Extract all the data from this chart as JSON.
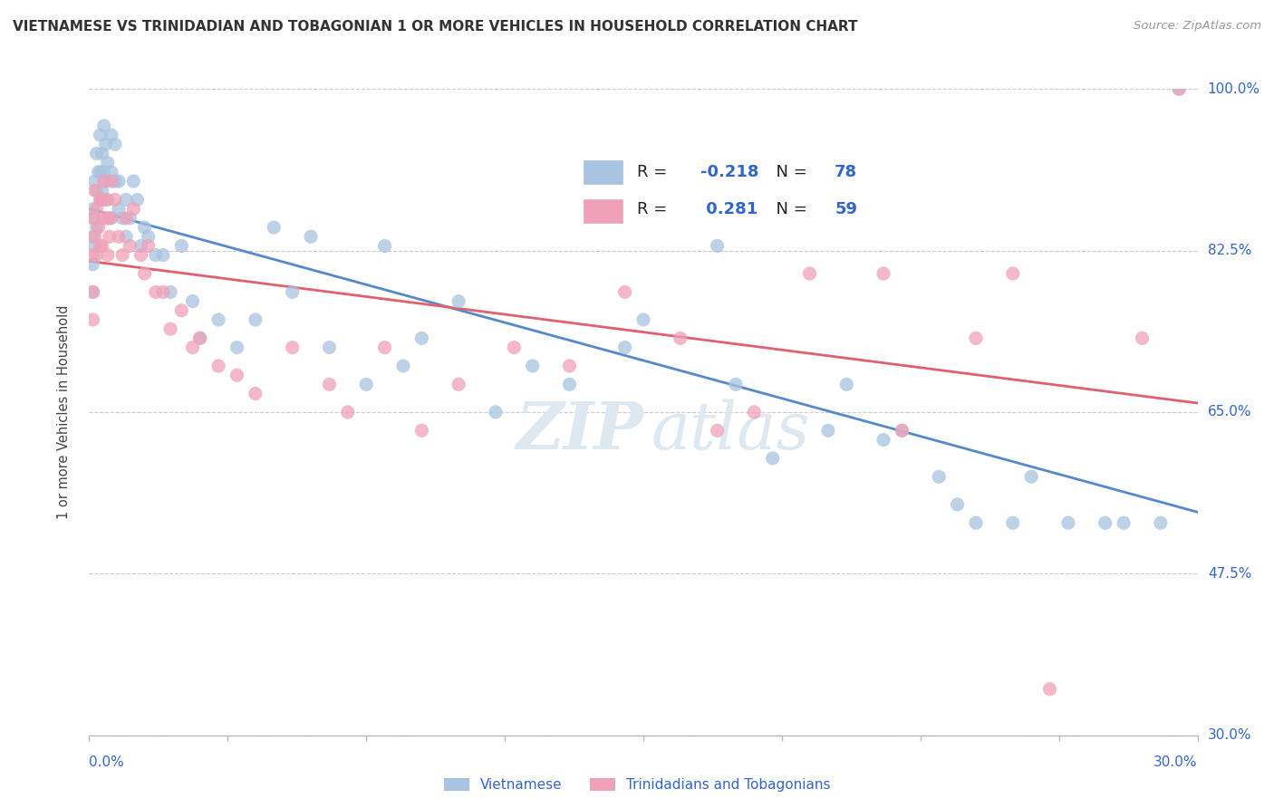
{
  "title": "VIETNAMESE VS TRINIDADIAN AND TOBAGONIAN 1 OR MORE VEHICLES IN HOUSEHOLD CORRELATION CHART",
  "source": "Source: ZipAtlas.com",
  "ylabel_label": "1 or more Vehicles in Household",
  "yticks": [
    30.0,
    47.5,
    65.0,
    82.5,
    100.0
  ],
  "xlim": [
    0.0,
    30.0
  ],
  "ylim": [
    30.0,
    100.0
  ],
  "R_blue": -0.218,
  "N_blue": 78,
  "R_pink": 0.281,
  "N_pink": 59,
  "blue_color": "#a8c4e0",
  "pink_color": "#f0a0b8",
  "blue_line_color": "#5588cc",
  "pink_line_color": "#e06070",
  "legend_R_color": "#3366cc",
  "title_color": "#333333",
  "source_color": "#999999",
  "axis_color": "#3366cc",
  "watermark_color": "#dde8f0",
  "blue_scatter_x": [
    0.1,
    0.1,
    0.1,
    0.1,
    0.15,
    0.15,
    0.15,
    0.2,
    0.2,
    0.2,
    0.25,
    0.3,
    0.3,
    0.3,
    0.35,
    0.35,
    0.4,
    0.4,
    0.45,
    0.45,
    0.5,
    0.5,
    0.55,
    0.6,
    0.6,
    0.7,
    0.7,
    0.8,
    0.8,
    0.9,
    1.0,
    1.0,
    1.1,
    1.2,
    1.3,
    1.4,
    1.5,
    1.6,
    1.8,
    2.0,
    2.2,
    2.5,
    2.8,
    3.0,
    3.5,
    4.0,
    4.5,
    5.5,
    6.5,
    7.5,
    8.5,
    9.0,
    10.0,
    11.0,
    12.0,
    13.0,
    14.5,
    15.0,
    17.5,
    18.5,
    20.0,
    21.5,
    22.0,
    23.0,
    23.5,
    24.0,
    25.0,
    25.5,
    26.5,
    27.5,
    28.0,
    29.0,
    29.5,
    5.0,
    6.0,
    8.0,
    20.5,
    17.0
  ],
  "blue_scatter_y": [
    87,
    84,
    81,
    78,
    90,
    86,
    83,
    93,
    89,
    85,
    91,
    95,
    91,
    88,
    93,
    89,
    96,
    91,
    94,
    90,
    92,
    88,
    86,
    95,
    91,
    94,
    90,
    90,
    87,
    86,
    88,
    84,
    86,
    90,
    88,
    83,
    85,
    84,
    82,
    82,
    78,
    83,
    77,
    73,
    75,
    72,
    75,
    78,
    72,
    68,
    70,
    73,
    77,
    65,
    70,
    68,
    72,
    75,
    68,
    60,
    63,
    62,
    63,
    58,
    55,
    53,
    53,
    58,
    53,
    53,
    53,
    53,
    100,
    85,
    84,
    83,
    68,
    83
  ],
  "pink_scatter_x": [
    0.1,
    0.1,
    0.1,
    0.1,
    0.15,
    0.15,
    0.2,
    0.2,
    0.25,
    0.3,
    0.3,
    0.35,
    0.35,
    0.4,
    0.4,
    0.45,
    0.5,
    0.5,
    0.55,
    0.6,
    0.6,
    0.7,
    0.8,
    0.9,
    1.0,
    1.1,
    1.2,
    1.4,
    1.5,
    1.6,
    1.8,
    2.0,
    2.2,
    2.5,
    2.8,
    3.0,
    3.5,
    4.0,
    4.5,
    5.5,
    6.5,
    7.0,
    8.0,
    9.0,
    10.0,
    11.5,
    13.0,
    14.5,
    16.0,
    17.0,
    18.0,
    19.5,
    21.5,
    22.0,
    24.0,
    25.0,
    26.0,
    28.5,
    29.5
  ],
  "pink_scatter_y": [
    86,
    82,
    78,
    75,
    89,
    84,
    87,
    82,
    85,
    88,
    83,
    88,
    83,
    90,
    86,
    88,
    86,
    82,
    84,
    90,
    86,
    88,
    84,
    82,
    86,
    83,
    87,
    82,
    80,
    83,
    78,
    78,
    74,
    76,
    72,
    73,
    70,
    69,
    67,
    72,
    68,
    65,
    72,
    63,
    68,
    72,
    70,
    78,
    73,
    63,
    65,
    80,
    80,
    63,
    73,
    80,
    35,
    73,
    100
  ]
}
